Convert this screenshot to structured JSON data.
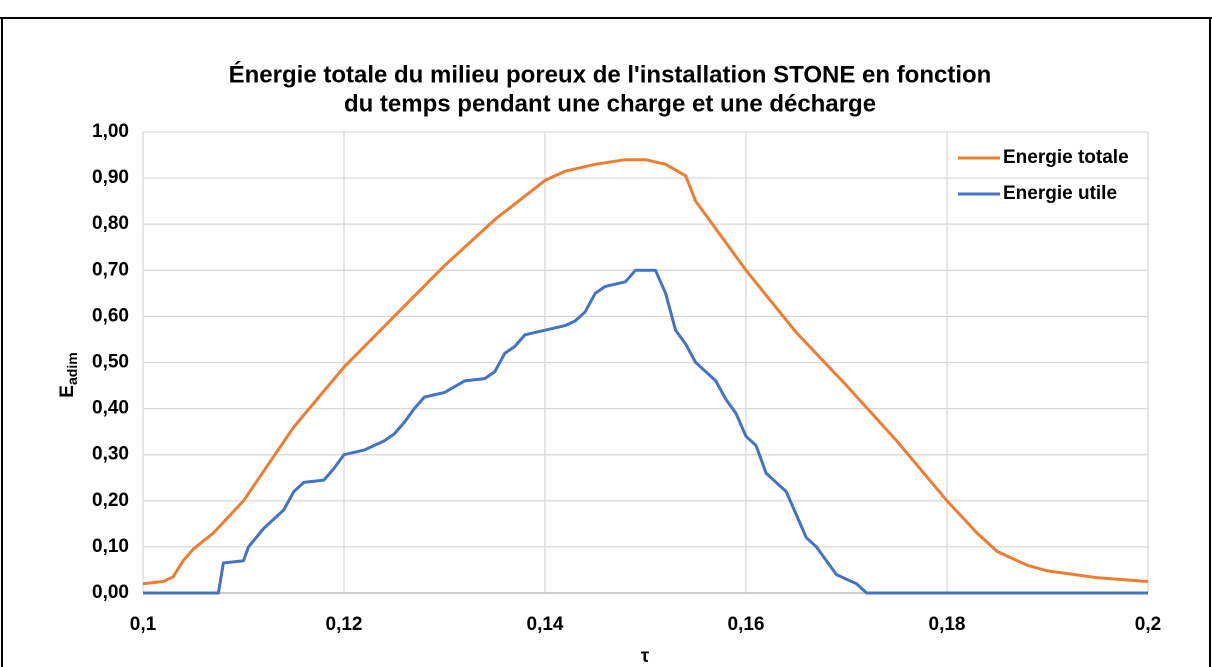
{
  "chart_data": {
    "type": "line",
    "title": [
      "Énergie totale du milieu poreux de l'installation STONE en fonction",
      "du temps pendant une charge et une décharge"
    ],
    "ylabel": "E",
    "ylabel_sub": "adim",
    "xlabel": "τ",
    "xlim": [
      0.1,
      0.2
    ],
    "xticks": [
      {
        "value": 0.1,
        "label": "0,1"
      },
      {
        "value": 0.12,
        "label": "0,12"
      },
      {
        "value": 0.14,
        "label": "0,14"
      },
      {
        "value": 0.16,
        "label": "0,16"
      },
      {
        "value": 0.18,
        "label": "0,18"
      },
      {
        "value": 0.2,
        "label": "0,2"
      }
    ],
    "ylim": [
      0,
      1
    ],
    "yticks": [
      {
        "value": 0,
        "label": "0,00"
      },
      {
        "value": 0.1,
        "label": "0,10"
      },
      {
        "value": 0.2,
        "label": "0,20"
      },
      {
        "value": 0.3,
        "label": "0,30"
      },
      {
        "value": 0.4,
        "label": "0,40"
      },
      {
        "value": 0.5,
        "label": "0,50"
      },
      {
        "value": 0.6,
        "label": "0,60"
      },
      {
        "value": 0.7,
        "label": "0,70"
      },
      {
        "value": 0.8,
        "label": "0,80"
      },
      {
        "value": 0.9,
        "label": "0,90"
      },
      {
        "value": 1,
        "label": "1,00"
      }
    ],
    "grid": true,
    "legend": "top-right",
    "series": [
      {
        "name": "Energie totale",
        "color": "#ed7d31",
        "x": [
          0.1,
          0.102,
          0.103,
          0.104,
          0.105,
          0.107,
          0.11,
          0.115,
          0.12,
          0.125,
          0.13,
          0.135,
          0.14,
          0.142,
          0.145,
          0.148,
          0.15,
          0.152,
          0.154,
          0.155,
          0.156,
          0.16,
          0.165,
          0.17,
          0.175,
          0.18,
          0.183,
          0.185,
          0.188,
          0.19,
          0.195,
          0.2
        ],
        "values": [
          0.02,
          0.025,
          0.035,
          0.07,
          0.095,
          0.13,
          0.2,
          0.36,
          0.49,
          0.6,
          0.71,
          0.81,
          0.895,
          0.915,
          0.93,
          0.94,
          0.94,
          0.93,
          0.905,
          0.85,
          0.82,
          0.7,
          0.565,
          0.45,
          0.33,
          0.2,
          0.13,
          0.09,
          0.06,
          0.048,
          0.033,
          0.025
        ]
      },
      {
        "name": "Energie utile",
        "color": "#4472c4",
        "x": [
          0.1,
          0.1075,
          0.108,
          0.11,
          0.1105,
          0.112,
          0.114,
          0.115,
          0.116,
          0.118,
          0.119,
          0.12,
          0.122,
          0.124,
          0.125,
          0.126,
          0.127,
          0.128,
          0.13,
          0.132,
          0.134,
          0.135,
          0.136,
          0.137,
          0.138,
          0.14,
          0.142,
          0.143,
          0.144,
          0.145,
          0.146,
          0.148,
          0.149,
          0.151,
          0.152,
          0.153,
          0.154,
          0.155,
          0.156,
          0.157,
          0.158,
          0.159,
          0.16,
          0.161,
          0.162,
          0.163,
          0.164,
          0.165,
          0.166,
          0.167,
          0.168,
          0.169,
          0.17,
          0.171,
          0.172,
          0.2
        ],
        "values": [
          0,
          0,
          0.065,
          0.07,
          0.1,
          0.14,
          0.18,
          0.22,
          0.24,
          0.245,
          0.27,
          0.3,
          0.31,
          0.33,
          0.345,
          0.37,
          0.4,
          0.425,
          0.435,
          0.46,
          0.465,
          0.48,
          0.52,
          0.535,
          0.56,
          0.57,
          0.58,
          0.59,
          0.61,
          0.65,
          0.665,
          0.675,
          0.7,
          0.7,
          0.65,
          0.57,
          0.54,
          0.5,
          0.48,
          0.46,
          0.42,
          0.39,
          0.34,
          0.32,
          0.26,
          0.24,
          0.22,
          0.17,
          0.12,
          0.1,
          0.07,
          0.04,
          0.03,
          0.02,
          0,
          0
        ]
      }
    ]
  }
}
